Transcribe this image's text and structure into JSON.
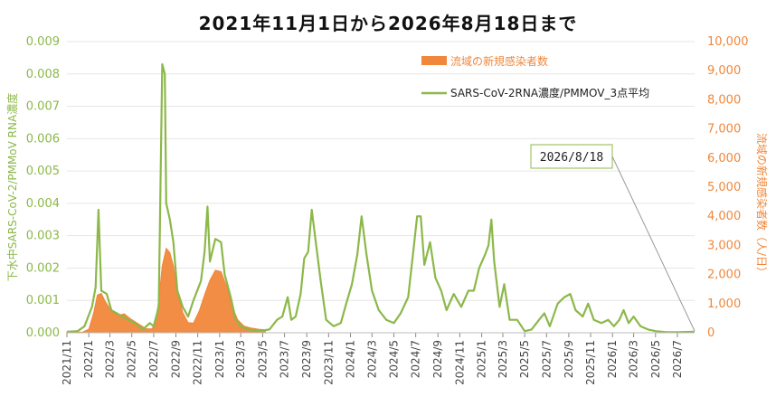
{
  "title": "2021年11月1日から2026年8月18日まで",
  "chart_data": {
    "type": "line+bar",
    "x_start": "2021-11-01",
    "x_end": "2026-08-18",
    "x_tick_labels": [
      "2021/11",
      "2022/1",
      "2022/3",
      "2022/5",
      "2022/7",
      "2022/9",
      "2022/11",
      "2023/1",
      "2023/3",
      "2023/5",
      "2023/7",
      "2023/9",
      "2023/11",
      "2024/1",
      "2024/3",
      "2024/5",
      "2024/7",
      "2024/9",
      "2024/11",
      "2025/1",
      "2025/3",
      "2025/5",
      "2025/7",
      "2025/9",
      "2025/11",
      "2026/1",
      "2026/3",
      "2026/5",
      "2026/7"
    ],
    "y_left": {
      "label": "下水中SARS-CoV-2/PMMoV RNA濃度",
      "ticks": [
        "0.000",
        "0.001",
        "0.002",
        "0.003",
        "0.004",
        "0.005",
        "0.006",
        "0.007",
        "0.008",
        "0.009"
      ],
      "ylim": [
        0,
        0.009
      ]
    },
    "y_right": {
      "label": "流域の新規感染者数（人/日）",
      "ticks": [
        "0",
        "1,000",
        "2,000",
        "3,000",
        "4,000",
        "5,000",
        "6,000",
        "7,000",
        "8,000",
        "9,000",
        "10,000"
      ],
      "ylim": [
        0,
        10000
      ]
    },
    "legend_placement": "top-center",
    "series": [
      {
        "name": "流域の新規感染者数",
        "type": "area",
        "axis": "right",
        "color": "#f0873a",
        "points": [
          [
            "2021-11-01",
            20
          ],
          [
            "2021-12-15",
            25
          ],
          [
            "2022-01-01",
            120
          ],
          [
            "2022-01-15",
            700
          ],
          [
            "2022-01-25",
            1300
          ],
          [
            "2022-02-05",
            1350
          ],
          [
            "2022-02-15",
            1100
          ],
          [
            "2022-02-25",
            900
          ],
          [
            "2022-03-10",
            700
          ],
          [
            "2022-03-25",
            600
          ],
          [
            "2022-04-10",
            650
          ],
          [
            "2022-04-25",
            500
          ],
          [
            "2022-05-10",
            380
          ],
          [
            "2022-05-25",
            260
          ],
          [
            "2022-06-10",
            140
          ],
          [
            "2022-06-25",
            130
          ],
          [
            "2022-07-05",
            280
          ],
          [
            "2022-07-15",
            1100
          ],
          [
            "2022-07-25",
            2300
          ],
          [
            "2022-08-05",
            2900
          ],
          [
            "2022-08-15",
            2750
          ],
          [
            "2022-08-25",
            2300
          ],
          [
            "2022-09-05",
            1400
          ],
          [
            "2022-09-20",
            700
          ],
          [
            "2022-10-05",
            350
          ],
          [
            "2022-10-20",
            330
          ],
          [
            "2022-11-05",
            750
          ],
          [
            "2022-11-20",
            1300
          ],
          [
            "2022-12-05",
            1800
          ],
          [
            "2022-12-20",
            2150
          ],
          [
            "2023-01-05",
            2100
          ],
          [
            "2023-01-20",
            1600
          ],
          [
            "2023-02-05",
            900
          ],
          [
            "2023-02-20",
            450
          ],
          [
            "2023-03-10",
            230
          ],
          [
            "2023-03-30",
            160
          ],
          [
            "2023-04-20",
            120
          ],
          [
            "2023-05-08",
            100
          ],
          [
            "2023-05-09",
            0
          ]
        ]
      },
      {
        "name": "SARS-CoV-2RNA濃度/PMMOV_3点平均",
        "type": "line",
        "axis": "left",
        "color": "#8cb84a",
        "points": [
          [
            "2021-11-01",
            3e-05
          ],
          [
            "2021-12-01",
            5e-05
          ],
          [
            "2021-12-20",
            0.0002
          ],
          [
            "2022-01-10",
            0.0008
          ],
          [
            "2022-01-20",
            0.0014
          ],
          [
            "2022-01-28",
            0.0038
          ],
          [
            "2022-02-05",
            0.0013
          ],
          [
            "2022-02-20",
            0.0012
          ],
          [
            "2022-03-05",
            0.0007
          ],
          [
            "2022-03-20",
            0.0006
          ],
          [
            "2022-04-05",
            0.0005
          ],
          [
            "2022-04-20",
            0.0004
          ],
          [
            "2022-05-10",
            0.0003
          ],
          [
            "2022-06-01",
            0.0001
          ],
          [
            "2022-06-20",
            0.0003
          ],
          [
            "2022-07-01",
            0.0002
          ],
          [
            "2022-07-15",
            0.0008
          ],
          [
            "2022-07-25",
            0.0083
          ],
          [
            "2022-08-01",
            0.008
          ],
          [
            "2022-08-05",
            0.004
          ],
          [
            "2022-08-15",
            0.0035
          ],
          [
            "2022-08-25",
            0.0028
          ],
          [
            "2022-09-05",
            0.0013
          ],
          [
            "2022-09-20",
            0.0008
          ],
          [
            "2022-10-05",
            0.0005
          ],
          [
            "2022-10-20",
            0.001
          ],
          [
            "2022-11-10",
            0.0016
          ],
          [
            "2022-11-20",
            0.0025
          ],
          [
            "2022-11-28",
            0.0039
          ],
          [
            "2022-12-05",
            0.0022
          ],
          [
            "2022-12-20",
            0.0029
          ],
          [
            "2023-01-05",
            0.0028
          ],
          [
            "2023-01-15",
            0.0018
          ],
          [
            "2023-02-01",
            0.0011
          ],
          [
            "2023-02-15",
            0.0004
          ],
          [
            "2023-03-01",
            0.0002
          ],
          [
            "2023-03-20",
            0.0001
          ],
          [
            "2023-04-20",
            5e-05
          ],
          [
            "2023-05-20",
            0.0001
          ],
          [
            "2023-06-10",
            0.0004
          ],
          [
            "2023-06-25",
            0.0005
          ],
          [
            "2023-07-10",
            0.0011
          ],
          [
            "2023-07-20",
            0.0004
          ],
          [
            "2023-08-01",
            0.0005
          ],
          [
            "2023-08-15",
            0.0012
          ],
          [
            "2023-08-25",
            0.0023
          ],
          [
            "2023-09-05",
            0.0025
          ],
          [
            "2023-09-15",
            0.0038
          ],
          [
            "2023-09-25",
            0.0029
          ],
          [
            "2023-10-10",
            0.0016
          ],
          [
            "2023-10-25",
            0.0004
          ],
          [
            "2023-11-15",
            0.0002
          ],
          [
            "2023-12-05",
            0.0003
          ],
          [
            "2023-12-20",
            0.0009
          ],
          [
            "2024-01-05",
            0.0015
          ],
          [
            "2024-01-20",
            0.0024
          ],
          [
            "2024-02-01",
            0.0036
          ],
          [
            "2024-02-15",
            0.0024
          ],
          [
            "2024-03-01",
            0.0013
          ],
          [
            "2024-03-20",
            0.0007
          ],
          [
            "2024-04-10",
            0.0004
          ],
          [
            "2024-05-01",
            0.0003
          ],
          [
            "2024-05-20",
            0.0006
          ],
          [
            "2024-06-10",
            0.0011
          ],
          [
            "2024-06-25",
            0.0026
          ],
          [
            "2024-07-05",
            0.0036
          ],
          [
            "2024-07-15",
            0.0036
          ],
          [
            "2024-07-25",
            0.0021
          ],
          [
            "2024-08-10",
            0.0028
          ],
          [
            "2024-08-25",
            0.0017
          ],
          [
            "2024-09-10",
            0.0013
          ],
          [
            "2024-09-25",
            0.0007
          ],
          [
            "2024-10-15",
            0.0012
          ],
          [
            "2024-11-05",
            0.0008
          ],
          [
            "2024-11-25",
            0.0013
          ],
          [
            "2024-12-10",
            0.0013
          ],
          [
            "2024-12-25",
            0.002
          ],
          [
            "2025-01-10",
            0.0024
          ],
          [
            "2025-01-20",
            0.0027
          ],
          [
            "2025-01-28",
            0.0035
          ],
          [
            "2025-02-05",
            0.0022
          ],
          [
            "2025-02-20",
            0.0008
          ],
          [
            "2025-03-05",
            0.0015
          ],
          [
            "2025-03-20",
            0.0004
          ],
          [
            "2025-04-10",
            0.0004
          ],
          [
            "2025-05-01",
            5e-05
          ],
          [
            "2025-05-20",
            0.0001
          ],
          [
            "2025-06-10",
            0.0004
          ],
          [
            "2025-06-25",
            0.0006
          ],
          [
            "2025-07-10",
            0.0002
          ],
          [
            "2025-08-01",
            0.0009
          ],
          [
            "2025-08-20",
            0.0011
          ],
          [
            "2025-09-05",
            0.0012
          ],
          [
            "2025-09-20",
            0.0007
          ],
          [
            "2025-10-10",
            0.0005
          ],
          [
            "2025-10-25",
            0.0009
          ],
          [
            "2025-11-10",
            0.0004
          ],
          [
            "2025-12-01",
            0.0003
          ],
          [
            "2025-12-20",
            0.0004
          ],
          [
            "2026-01-05",
            0.0002
          ],
          [
            "2026-01-20",
            0.0004
          ],
          [
            "2026-02-01",
            0.0007
          ],
          [
            "2026-02-15",
            0.0003
          ],
          [
            "2026-03-01",
            0.0005
          ],
          [
            "2026-03-20",
            0.0002
          ],
          [
            "2026-04-10",
            0.0001
          ],
          [
            "2026-05-01",
            5e-05
          ],
          [
            "2026-06-01",
            2e-05
          ],
          [
            "2026-07-01",
            2e-05
          ],
          [
            "2026-08-18",
            3e-05
          ]
        ]
      }
    ],
    "annotation": {
      "text": "2026/8/18",
      "target_date": "2026-08-18"
    }
  }
}
